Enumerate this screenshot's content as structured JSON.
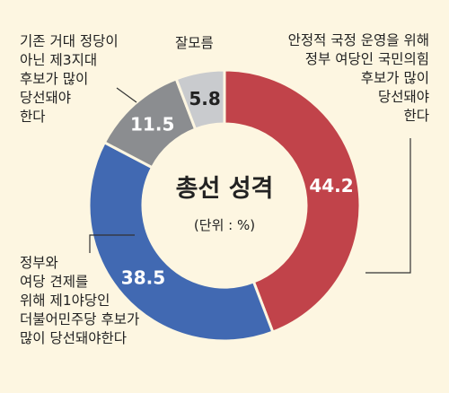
{
  "chart_data": {
    "type": "pie",
    "variant": "donut",
    "title": "총선 성격",
    "unit_note": "(단위 : %)",
    "slices": [
      {
        "key": "gov",
        "label": "안정적 국정 운영을 위해\n정부 여당인 국민의힘\n후보가 많이\n당선돼야\n한다",
        "value": 44.2,
        "value_label": "44.2",
        "color": "#c1434a",
        "value_color": "#ffffff"
      },
      {
        "key": "opp",
        "label": "정부와\n여당 견제를\n위해 제1야당인\n더불어민주당 후보가\n많이 당선돼야한다",
        "value": 38.5,
        "value_label": "38.5",
        "color": "#4169b2",
        "value_color": "#ffffff"
      },
      {
        "key": "third",
        "label": "기존 거대 정당이\n아닌 제3지대\n후보가 많이\n당선돼야\n한다",
        "value": 11.5,
        "value_label": "11.5",
        "color": "#8b8d90",
        "value_color": "#ffffff"
      },
      {
        "key": "unknown",
        "label": "잘모름",
        "value": 5.8,
        "value_label": "5.8",
        "color": "#c9cbce",
        "value_color": "#222222"
      }
    ]
  }
}
